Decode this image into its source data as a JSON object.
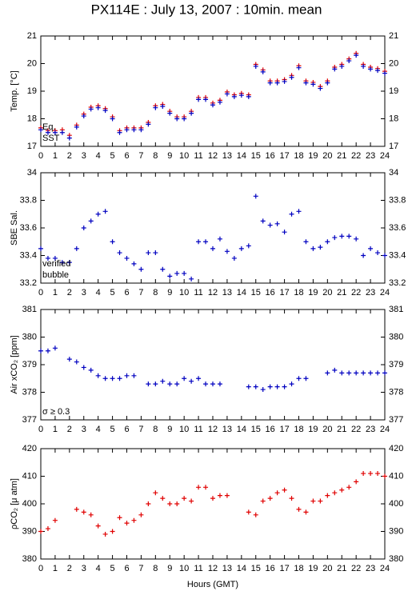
{
  "chart_data": [
    {
      "type": "scatter",
      "title": "PX114E : July 13, 2007 : 10min. mean",
      "ylabel": "Temp. [°C]",
      "x": [
        0,
        0.5,
        1,
        1.5,
        2,
        2.5,
        3,
        3.5,
        4,
        4.5,
        5,
        5.5,
        6,
        6.5,
        7,
        7.5,
        8,
        8.5,
        9,
        9.5,
        10,
        10.5,
        11,
        11.5,
        12,
        12.5,
        13,
        13.5,
        14,
        14.5,
        15,
        15.5,
        16,
        16.5,
        17,
        17.5,
        18,
        18.5,
        19,
        19.5,
        20,
        20.5,
        21,
        21.5,
        22,
        22.5,
        23,
        23.5,
        24
      ],
      "xlim": [
        0,
        24
      ],
      "xticks": [
        0,
        1,
        2,
        3,
        4,
        5,
        6,
        7,
        8,
        9,
        10,
        11,
        12,
        13,
        14,
        15,
        16,
        17,
        18,
        19,
        20,
        21,
        22,
        23,
        24
      ],
      "ylim": [
        17,
        21
      ],
      "yticks": [
        17,
        18,
        19,
        20,
        21
      ],
      "series": [
        {
          "name": "Eq.",
          "color": "#e00000",
          "values": [
            17.67,
            17.57,
            17.57,
            17.6,
            17.4,
            17.77,
            18.17,
            18.42,
            18.47,
            18.37,
            18.07,
            17.57,
            17.67,
            17.67,
            17.67,
            17.87,
            18.47,
            18.52,
            18.27,
            18.07,
            18.07,
            18.27,
            18.77,
            18.77,
            18.57,
            18.67,
            18.97,
            18.87,
            18.92,
            18.87,
            19.97,
            19.77,
            19.37,
            19.37,
            19.42,
            19.57,
            19.92,
            19.37,
            19.32,
            19.17,
            19.37,
            19.87,
            19.97,
            20.17,
            20.37,
            19.97,
            19.87,
            19.82,
            19.72
          ]
        },
        {
          "name": "SST",
          "color": "#0000c0",
          "values": [
            17.6,
            17.5,
            17.5,
            17.5,
            17.3,
            17.7,
            18.1,
            18.35,
            18.4,
            18.3,
            18.0,
            17.5,
            17.6,
            17.6,
            17.6,
            17.8,
            18.4,
            18.45,
            18.2,
            18.0,
            18.0,
            18.2,
            18.7,
            18.7,
            18.5,
            18.6,
            18.9,
            18.8,
            18.85,
            18.8,
            19.9,
            19.7,
            19.3,
            19.3,
            19.35,
            19.5,
            19.85,
            19.3,
            19.25,
            19.1,
            19.3,
            19.8,
            19.9,
            20.1,
            20.3,
            19.9,
            19.8,
            19.75,
            19.65
          ]
        }
      ]
    },
    {
      "type": "scatter",
      "ylabel": "SBE Sal.",
      "x": [
        0,
        0.5,
        1,
        1.5,
        2,
        2.5,
        3,
        3.5,
        4,
        4.5,
        5,
        5.5,
        6,
        6.5,
        7,
        7.5,
        8,
        8.5,
        9,
        9.5,
        10,
        10.5,
        11,
        11.5,
        12,
        12.5,
        13,
        13.5,
        14,
        14.5,
        15,
        15.5,
        16,
        16.5,
        17,
        17.5,
        18,
        18.5,
        19,
        19.5,
        20,
        20.5,
        21,
        21.5,
        22,
        22.5,
        23,
        23.5,
        24
      ],
      "xlim": [
        0,
        24
      ],
      "xticks": [
        0,
        1,
        2,
        3,
        4,
        5,
        6,
        7,
        8,
        9,
        10,
        11,
        12,
        13,
        14,
        15,
        16,
        17,
        18,
        19,
        20,
        21,
        22,
        23,
        24
      ],
      "ylim": [
        33.2,
        34
      ],
      "yticks": [
        33.2,
        33.4,
        33.6,
        33.8,
        34
      ],
      "series": [
        {
          "name": "verified",
          "color": "#0000c0",
          "values": [
            33.45,
            33.38,
            33.38,
            33.35,
            33.35,
            33.45,
            33.6,
            33.65,
            33.7,
            33.72,
            33.5,
            33.42,
            33.38,
            33.34,
            33.3,
            33.42,
            33.42,
            33.3,
            33.25,
            33.27,
            33.27,
            33.23,
            33.5,
            33.5,
            33.45,
            33.52,
            33.43,
            33.38,
            33.45,
            33.47,
            33.83,
            33.65,
            33.62,
            33.63,
            33.57,
            33.7,
            33.72,
            33.5,
            33.45,
            33.46,
            33.5,
            33.53,
            33.54,
            33.54,
            33.52,
            33.4,
            33.45,
            33.42,
            33.4
          ]
        }
      ],
      "annotations": [
        {
          "text": "bubble",
          "color": "#c000c0"
        }
      ]
    },
    {
      "type": "scatter",
      "ylabel": "Air xCO₂ [ppm]",
      "x": [
        0,
        0.5,
        1,
        1.5,
        2,
        2.5,
        3,
        3.5,
        4,
        4.5,
        5,
        5.5,
        6,
        6.5,
        7,
        7.5,
        8,
        8.5,
        9,
        9.5,
        10,
        10.5,
        11,
        11.5,
        12,
        12.5,
        13,
        13.5,
        14,
        14.5,
        15,
        15.5,
        16,
        16.5,
        17,
        17.5,
        18,
        18.5,
        19,
        19.5,
        20,
        20.5,
        21,
        21.5,
        22,
        22.5,
        23,
        23.5,
        24
      ],
      "xlim": [
        0,
        24
      ],
      "xticks": [
        0,
        1,
        2,
        3,
        4,
        5,
        6,
        7,
        8,
        9,
        10,
        11,
        12,
        13,
        14,
        15,
        16,
        17,
        18,
        19,
        20,
        21,
        22,
        23,
        24
      ],
      "ylim": [
        377,
        381
      ],
      "yticks": [
        377,
        378,
        379,
        380,
        381
      ],
      "series": [
        {
          "color": "#0000c0",
          "values": [
            379.5,
            379.5,
            379.6,
            null,
            379.2,
            379.1,
            378.9,
            378.8,
            378.6,
            378.5,
            378.5,
            378.5,
            378.6,
            378.6,
            null,
            378.3,
            378.3,
            378.4,
            378.3,
            378.3,
            378.5,
            378.4,
            378.5,
            378.3,
            378.3,
            378.3,
            null,
            null,
            null,
            378.2,
            378.2,
            378.1,
            378.2,
            378.2,
            378.2,
            378.3,
            378.5,
            378.5,
            null,
            null,
            378.7,
            378.8,
            378.7,
            378.7,
            378.7,
            378.7,
            378.7,
            378.7,
            378.7
          ]
        }
      ],
      "annotations": [
        {
          "text": "σ ≥ 0.3",
          "color": "#c000c0"
        }
      ]
    },
    {
      "type": "scatter",
      "ylabel": "ρCO₂ [μ atm]",
      "xlabel": "Hours (GMT)",
      "x": [
        0,
        0.5,
        1,
        1.5,
        2,
        2.5,
        3,
        3.5,
        4,
        4.5,
        5,
        5.5,
        6,
        6.5,
        7,
        7.5,
        8,
        8.5,
        9,
        9.5,
        10,
        10.5,
        11,
        11.5,
        12,
        12.5,
        13,
        13.5,
        14,
        14.5,
        15,
        15.5,
        16,
        16.5,
        17,
        17.5,
        18,
        18.5,
        19,
        19.5,
        20,
        20.5,
        21,
        21.5,
        22,
        22.5,
        23,
        23.5,
        24
      ],
      "xlim": [
        0,
        24
      ],
      "xticks": [
        0,
        1,
        2,
        3,
        4,
        5,
        6,
        7,
        8,
        9,
        10,
        11,
        12,
        13,
        14,
        15,
        16,
        17,
        18,
        19,
        20,
        21,
        22,
        23,
        24
      ],
      "ylim": [
        380,
        420
      ],
      "yticks": [
        380,
        390,
        400,
        410,
        420
      ],
      "series": [
        {
          "color": "#e00000",
          "values": [
            390,
            391,
            394,
            null,
            null,
            398,
            397,
            396,
            392,
            389,
            390,
            395,
            393,
            394,
            396,
            400,
            404,
            402,
            400,
            400,
            402,
            401,
            406,
            406,
            402,
            403,
            403,
            null,
            null,
            397,
            396,
            401,
            402,
            404,
            405,
            402,
            398,
            397,
            401,
            401,
            403,
            404,
            405,
            406,
            408,
            411,
            411,
            411,
            410
          ]
        }
      ]
    }
  ]
}
